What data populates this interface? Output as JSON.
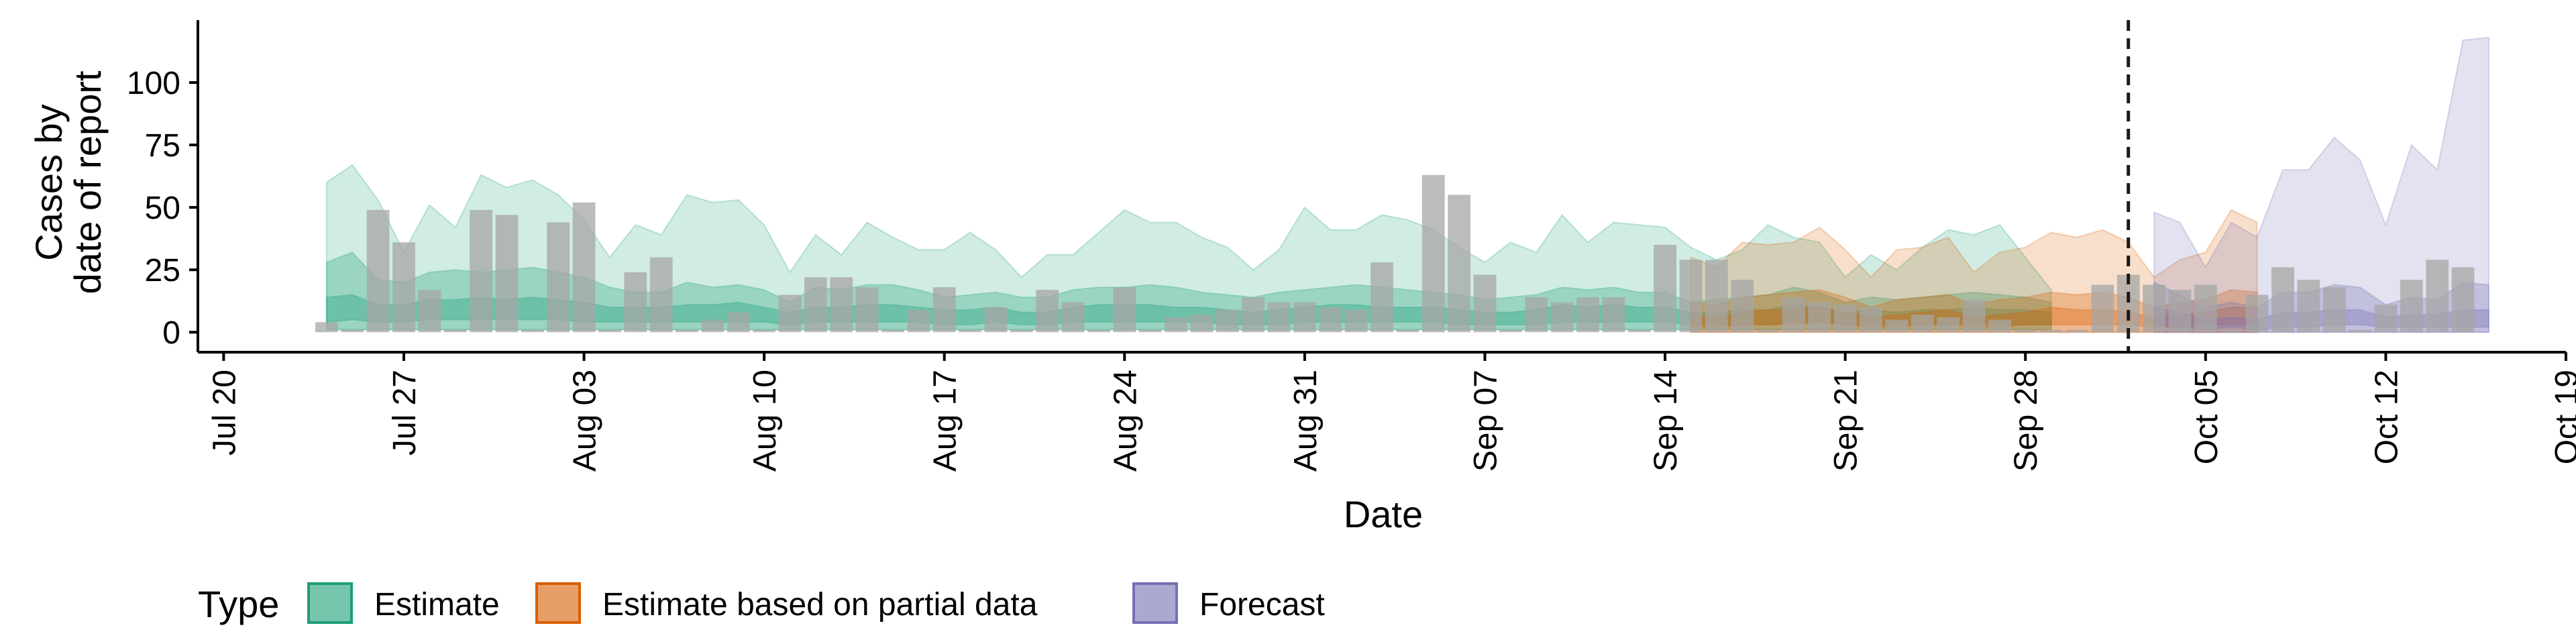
{
  "chart_data": {
    "type": "bar",
    "title": "",
    "xlabel": "Date",
    "ylabel": [
      "Cases by",
      "date of report"
    ],
    "ylim": [
      -8,
      125
    ],
    "y_ticks": [
      0,
      25,
      50,
      75,
      100
    ],
    "x_range": [
      "2020-07-19",
      "2020-10-19"
    ],
    "x_ticks": [
      {
        "date": "2020-07-20",
        "label": "Jul 20"
      },
      {
        "date": "2020-07-27",
        "label": "Jul 27"
      },
      {
        "date": "2020-08-03",
        "label": "Aug 03"
      },
      {
        "date": "2020-08-10",
        "label": "Aug 10"
      },
      {
        "date": "2020-08-17",
        "label": "Aug 17"
      },
      {
        "date": "2020-08-24",
        "label": "Aug 24"
      },
      {
        "date": "2020-08-31",
        "label": "Aug 31"
      },
      {
        "date": "2020-09-07",
        "label": "Sep 07"
      },
      {
        "date": "2020-09-14",
        "label": "Sep 14"
      },
      {
        "date": "2020-09-21",
        "label": "Sep 21"
      },
      {
        "date": "2020-09-28",
        "label": "Sep 28"
      },
      {
        "date": "2020-10-05",
        "label": "Oct 05"
      },
      {
        "date": "2020-10-12",
        "label": "Oct 12"
      },
      {
        "date": "2020-10-19",
        "label": "Oct 19"
      }
    ],
    "vline_date": "2020-10-02",
    "grid": false,
    "legend": {
      "title": "Type",
      "position": "bottom",
      "items": [
        {
          "label": "Estimate",
          "color": "#1b9e77"
        },
        {
          "label": "Estimate based on partial data",
          "color": "#d95f02"
        },
        {
          "label": "Forecast",
          "color": "#7570b3"
        }
      ]
    },
    "bars": {
      "color": "#a6a6a6",
      "start_date": "2020-07-24",
      "values": [
        4,
        1,
        49,
        36,
        17,
        1,
        49,
        47,
        1,
        44,
        52,
        1,
        24,
        30,
        1,
        5,
        8,
        1,
        15,
        22,
        22,
        18,
        1,
        9,
        18,
        1,
        10,
        1,
        17,
        12,
        1,
        18,
        1,
        6,
        7,
        9,
        14,
        12,
        12,
        10,
        9,
        28,
        1,
        63,
        55,
        23,
        1,
        14,
        12,
        14,
        14,
        1,
        35,
        29,
        29,
        21,
        1,
        14,
        12,
        11,
        10,
        5,
        7,
        6,
        13,
        5,
        1,
        1,
        1,
        19,
        23,
        19,
        17,
        19,
        1,
        15,
        26,
        21,
        18,
        1,
        11,
        21,
        29,
        26
      ]
    },
    "series": [
      {
        "name": "Estimate",
        "color": "#1b9e77",
        "start_date": "2020-07-24",
        "upper90": [
          60,
          67,
          53,
          32,
          51,
          42,
          63,
          58,
          61,
          55,
          45,
          30,
          43,
          39,
          55,
          52,
          53,
          43,
          24,
          39,
          31,
          44,
          38,
          33,
          33,
          40,
          33,
          22,
          31,
          31,
          40,
          49,
          44,
          44,
          38,
          34,
          25,
          33,
          50,
          41,
          41,
          47,
          45,
          41,
          34,
          28,
          36,
          32,
          47,
          36,
          44,
          43,
          42,
          34,
          29,
          33,
          43,
          38,
          36,
          22,
          31,
          25,
          34,
          41,
          39,
          43,
          30,
          17
        ],
        "upper50": [
          28,
          32,
          21,
          20,
          24,
          25,
          24,
          25,
          26,
          24,
          22,
          18,
          16,
          16,
          20,
          18,
          19,
          17,
          12,
          18,
          17,
          19,
          19,
          17,
          14,
          15,
          16,
          14,
          14,
          17,
          18,
          18,
          19,
          18,
          16,
          15,
          14,
          16,
          17,
          18,
          19,
          18,
          17,
          16,
          15,
          13,
          14,
          15,
          18,
          17,
          18,
          16,
          16,
          12,
          13,
          14,
          15,
          18,
          16,
          12,
          14,
          13,
          14,
          15,
          16,
          15,
          14,
          12
        ],
        "upper20": [
          14,
          15,
          11,
          11,
          13,
          13,
          14,
          13,
          14,
          13,
          12,
          10,
          10,
          10,
          11,
          11,
          12,
          10,
          8,
          10,
          10,
          11,
          11,
          10,
          9,
          9,
          10,
          8,
          8,
          10,
          11,
          11,
          11,
          10,
          10,
          9,
          8,
          9,
          10,
          11,
          11,
          10,
          10,
          10,
          9,
          8,
          8,
          9,
          11,
          10,
          11,
          10,
          10,
          8,
          8,
          9,
          9,
          11,
          10,
          8,
          9,
          8,
          9,
          9,
          10,
          9,
          9,
          8
        ],
        "lower20": [
          4,
          5,
          4,
          4,
          5,
          5,
          5,
          5,
          5,
          5,
          4,
          4,
          4,
          4,
          4,
          4,
          4,
          4,
          3,
          4,
          4,
          4,
          4,
          4,
          3,
          3,
          4,
          3,
          3,
          4,
          4,
          4,
          4,
          4,
          4,
          3,
          3,
          3,
          4,
          4,
          4,
          4,
          4,
          4,
          3,
          3,
          3,
          3,
          4,
          4,
          4,
          4,
          4,
          3,
          3,
          3,
          3,
          4,
          4,
          3,
          3,
          3,
          3,
          3,
          4,
          3,
          3,
          3
        ],
        "lower50": [
          1,
          1,
          1,
          1,
          1,
          1,
          1,
          1,
          1,
          1,
          1,
          1,
          1,
          1,
          1,
          1,
          1,
          1,
          1,
          1,
          1,
          1,
          1,
          1,
          1,
          1,
          1,
          1,
          1,
          1,
          1,
          1,
          1,
          1,
          1,
          1,
          1,
          1,
          1,
          1,
          1,
          1,
          1,
          1,
          1,
          1,
          1,
          1,
          1,
          1,
          1,
          1,
          1,
          1,
          1,
          1,
          1,
          1,
          1,
          1,
          1,
          1,
          1,
          1,
          1,
          1,
          1,
          1
        ]
      },
      {
        "name": "Estimate based on partial data",
        "color": "#d95f02",
        "start_date": "2020-09-15",
        "upper90": [
          30,
          26,
          36,
          35,
          36,
          42,
          33,
          22,
          33,
          34,
          38,
          24,
          32,
          34,
          40,
          38,
          41,
          36,
          22,
          29,
          32,
          49,
          44
        ],
        "upper50": [
          12,
          11,
          14,
          15,
          16,
          17,
          14,
          10,
          13,
          14,
          15,
          11,
          13,
          14,
          16,
          15,
          16,
          14,
          10,
          12,
          13,
          17,
          16
        ],
        "upper20": [
          6,
          6,
          8,
          9,
          9,
          10,
          8,
          6,
          7,
          8,
          9,
          6,
          7,
          8,
          10,
          9,
          9,
          8,
          6,
          7,
          8,
          10,
          10
        ],
        "lower20": [
          2,
          2,
          3,
          3,
          3,
          4,
          3,
          2,
          2,
          3,
          3,
          2,
          2,
          3,
          3,
          3,
          3,
          3,
          2,
          2,
          3,
          3,
          3
        ],
        "lower50": [
          0,
          0,
          0,
          0,
          0,
          0,
          0,
          0,
          0,
          0,
          0,
          0,
          0,
          0,
          0,
          0,
          0,
          0,
          0,
          0,
          0,
          0,
          0
        ]
      },
      {
        "name": "Forecast",
        "color": "#7570b3",
        "start_date": "2020-10-03",
        "upper90": [
          48,
          44,
          26,
          44,
          38,
          65,
          65,
          78,
          69,
          43,
          75,
          65,
          117,
          118
        ],
        "upper50": [
          20,
          15,
          10,
          12,
          10,
          16,
          16,
          19,
          18,
          11,
          14,
          13,
          20,
          19
        ],
        "upper20": [
          10,
          8,
          5,
          6,
          5,
          8,
          8,
          9,
          9,
          6,
          7,
          7,
          9,
          9
        ],
        "lower20": [
          3,
          2,
          1,
          2,
          1,
          2,
          2,
          3,
          3,
          2,
          2,
          2,
          2,
          2
        ],
        "lower50": [
          0,
          0,
          0,
          0,
          0,
          0,
          0,
          0,
          0,
          0,
          0,
          0,
          0,
          0
        ]
      }
    ]
  }
}
